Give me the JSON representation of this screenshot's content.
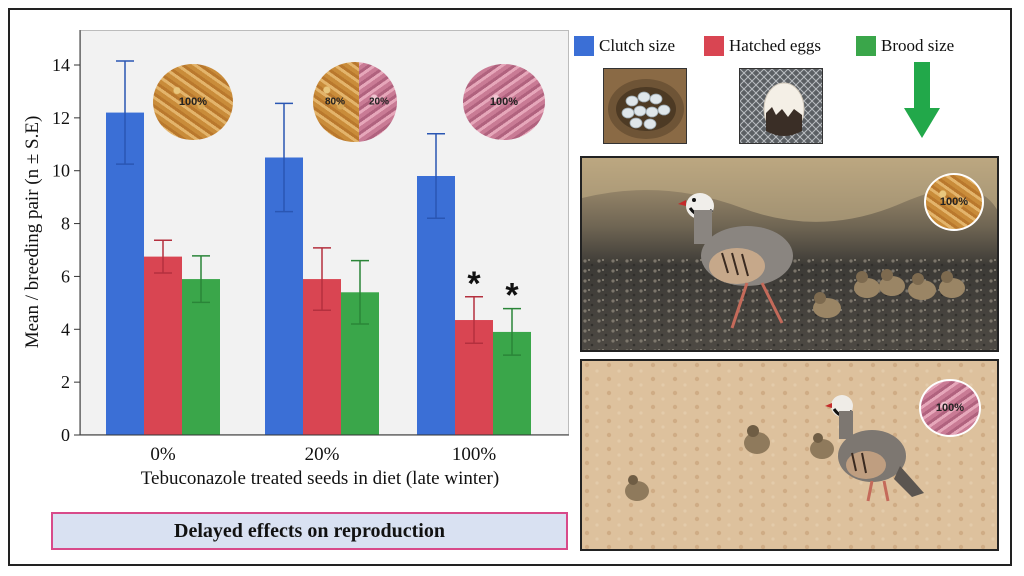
{
  "chart_data": {
    "type": "bar",
    "categories": [
      "0%",
      "20%",
      "100%"
    ],
    "series": [
      {
        "name": "Clutch size",
        "color": "#3b6fd6",
        "values": [
          12.2,
          10.5,
          9.8
        ],
        "errors": [
          1.95,
          2.05,
          1.6
        ]
      },
      {
        "name": "Hatched eggs",
        "color": "#d94552",
        "values": [
          6.75,
          5.9,
          4.35
        ],
        "errors": [
          0.62,
          1.18,
          0.88
        ]
      },
      {
        "name": "Brood size",
        "color": "#3aa64a",
        "values": [
          5.9,
          5.4,
          3.9
        ],
        "errors": [
          0.88,
          1.2,
          0.88
        ]
      }
    ],
    "significance": [
      {
        "category": "100%",
        "series": "Hatched eggs",
        "mark": "*"
      },
      {
        "category": "100%",
        "series": "Brood size",
        "mark": "*"
      }
    ],
    "ylim": [
      0,
      15
    ],
    "yticks": [
      0,
      2,
      4,
      6,
      8,
      10,
      12,
      14
    ],
    "ylabel": "Mean / breeding pair (n ± S.E)",
    "xlabel": "Tebuconazole treated seeds in diet (late winter)",
    "grid": false
  },
  "diet_icons": [
    {
      "type": "wheat",
      "label": "100%"
    },
    {
      "type": "mixed",
      "left_label": "80%",
      "right_label": "20%"
    },
    {
      "type": "pink",
      "label": "100%"
    }
  ],
  "photo_badges": [
    {
      "type": "wheat",
      "label": "100%"
    },
    {
      "type": "pink",
      "label": "100%"
    }
  ],
  "caption": "Delayed effects on reproduction",
  "colors": {
    "arrow": "#22a84a",
    "caption_bg": "#d9e1f2",
    "caption_border": "#d84a8a"
  }
}
